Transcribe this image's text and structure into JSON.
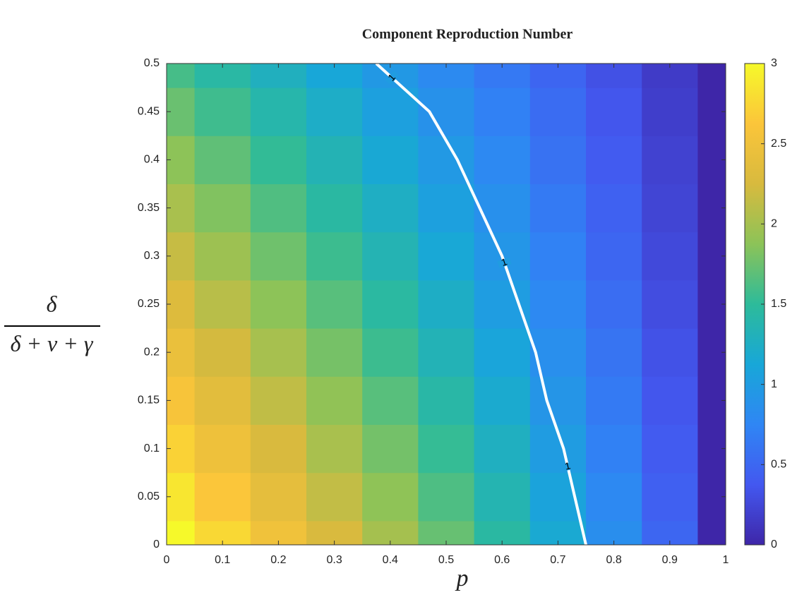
{
  "chart_data": {
    "type": "heatmap",
    "title": "Component Reproduction Number",
    "xlabel": "p",
    "ylabel": {
      "numerator": "δ",
      "denominator": "δ + ν + γ"
    },
    "x": [
      0,
      0.1,
      0.2,
      0.3,
      0.4,
      0.5,
      0.6,
      0.7,
      0.8,
      0.9,
      1
    ],
    "y": [
      0,
      0.05,
      0.1,
      0.15,
      0.2,
      0.25,
      0.3,
      0.35,
      0.4,
      0.45,
      0.5
    ],
    "z": [
      [
        3,
        2.76,
        2.51,
        2.26,
        2.0,
        1.73,
        1.45,
        1.16,
        0.84,
        0.49,
        0
      ],
      [
        2.86,
        2.63,
        2.39,
        2.14,
        1.89,
        1.63,
        1.36,
        1.08,
        0.78,
        0.44,
        0
      ],
      [
        2.72,
        2.49,
        2.26,
        2.02,
        1.78,
        1.53,
        1.27,
        1.0,
        0.71,
        0.4,
        0
      ],
      [
        2.58,
        2.36,
        2.13,
        1.9,
        1.67,
        1.43,
        1.18,
        0.92,
        0.65,
        0.36,
        0
      ],
      [
        2.44,
        2.23,
        2.01,
        1.79,
        1.56,
        1.33,
        1.1,
        0.85,
        0.6,
        0.33,
        0
      ],
      [
        2.3,
        2.09,
        1.88,
        1.67,
        1.46,
        1.24,
        1.01,
        0.78,
        0.55,
        0.29,
        0
      ],
      [
        2.16,
        1.96,
        1.76,
        1.56,
        1.35,
        1.14,
        0.93,
        0.72,
        0.49,
        0.26,
        0
      ],
      [
        2.02,
        1.83,
        1.64,
        1.45,
        1.25,
        1.05,
        0.86,
        0.65,
        0.45,
        0.23,
        0
      ],
      [
        1.88,
        1.7,
        1.52,
        1.34,
        1.15,
        0.97,
        0.78,
        0.59,
        0.4,
        0.21,
        0
      ],
      [
        1.74,
        1.57,
        1.4,
        1.23,
        1.05,
        0.88,
        0.71,
        0.54,
        0.36,
        0.18,
        0
      ],
      [
        1.6,
        1.44,
        1.28,
        1.12,
        0.96,
        0.8,
        0.64,
        0.48,
        0.32,
        0.16,
        0
      ]
    ],
    "xlim": [
      0,
      1
    ],
    "xticks": [
      0,
      0.1,
      0.2,
      0.3,
      0.4,
      0.5,
      0.6,
      0.7,
      0.8,
      0.9,
      1
    ],
    "ylim": [
      0,
      0.5
    ],
    "yticks": [
      0,
      0.05,
      0.1,
      0.15,
      0.2,
      0.25,
      0.3,
      0.35,
      0.4,
      0.45,
      0.5
    ],
    "colormap": [
      "#3e26a8",
      "#4358f0",
      "#2f86f4",
      "#18a7d8",
      "#2dbb9a",
      "#8cc358",
      "#d8ba3e",
      "#fbc53a",
      "#f6f92a"
    ],
    "colorbar": {
      "lim": [
        0,
        3
      ],
      "ticks": [
        0,
        0.5,
        1,
        1.5,
        2,
        2.5,
        3
      ]
    },
    "contour": {
      "level": 1,
      "color": "#ffffff",
      "x": [
        0.75,
        0.73,
        0.71,
        0.68,
        0.66,
        0.63,
        0.6,
        0.56,
        0.52,
        0.47,
        0.375
      ],
      "y": [
        0,
        0.05,
        0.1,
        0.15,
        0.2,
        0.25,
        0.3,
        0.35,
        0.4,
        0.45,
        0.5
      ]
    }
  }
}
